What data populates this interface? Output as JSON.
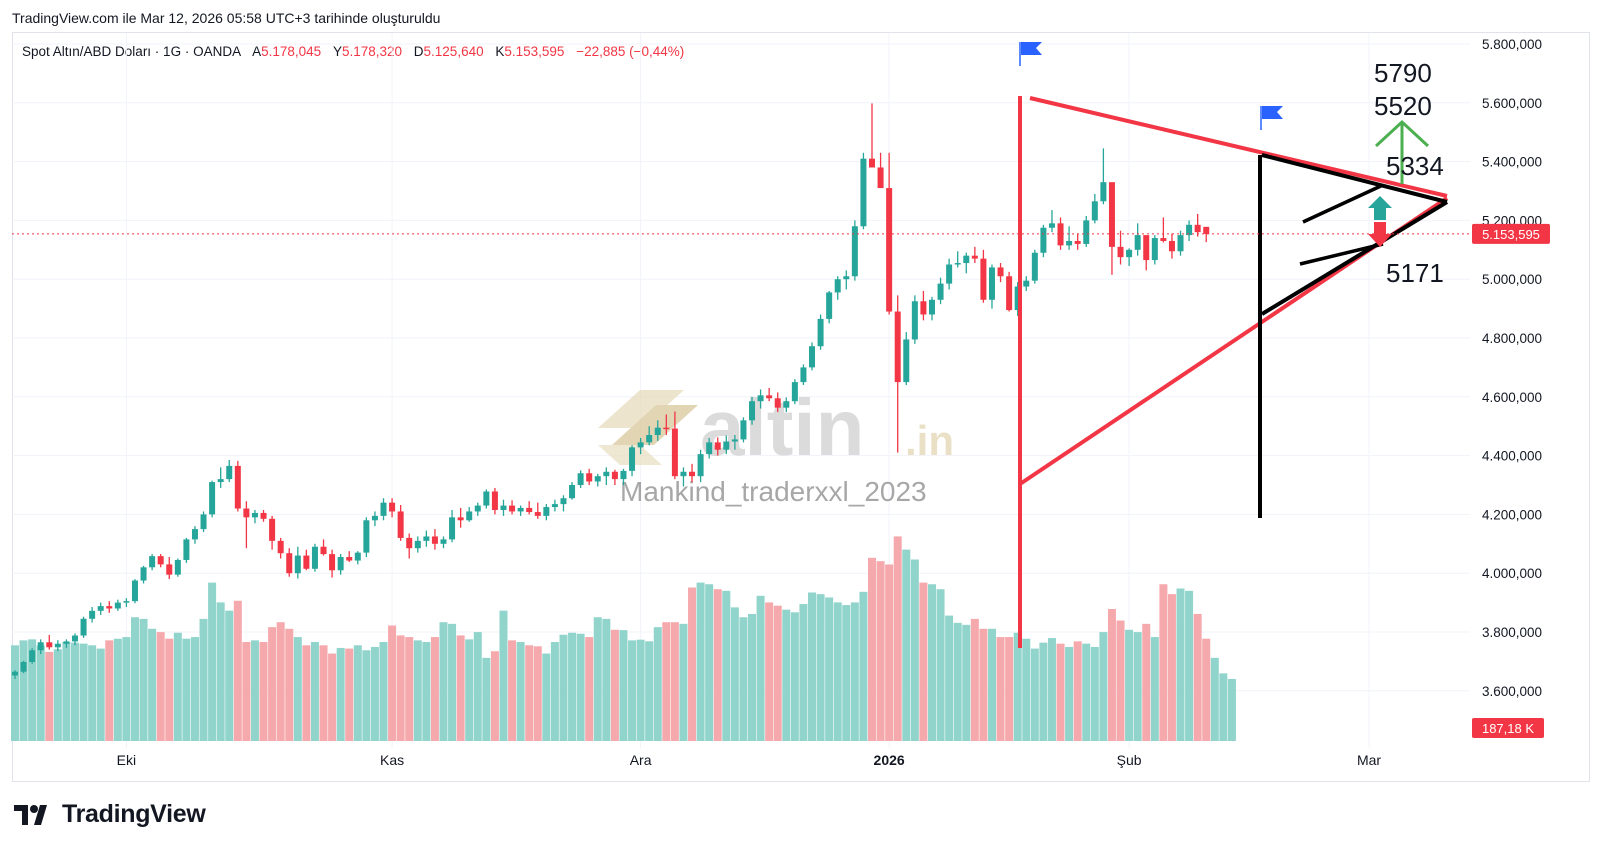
{
  "header": {
    "generated": "TradingView.com ile Mar 12, 2026 05:58 UTC+3 tarihinde oluşturuldu"
  },
  "legend": {
    "symbol": "Spot Altın/ABD Doları · 1G · OANDA",
    "open_label": "A",
    "open": "5.178,045",
    "high_label": "Y",
    "high": "5.178,320",
    "low_label": "D",
    "low": "5.125,640",
    "close_label": "K",
    "close": "5.153,595",
    "change": "−22,885 (−0,44%)"
  },
  "watermark": {
    "logo_text": "altin",
    "logo_suffix": ".in",
    "author": "Mankind_traderxxl_2023"
  },
  "annotations": {
    "target_high": "5790",
    "target_mid": "5520",
    "resistance": "5334",
    "support": "5171"
  },
  "price_label": "5.153,595",
  "volume_label": "187,18 K",
  "brand": "TradingView",
  "colors": {
    "up": "#26a69a",
    "down": "#f23645",
    "vol_up": "#91d4cc",
    "vol_down": "#f6a9ad",
    "trend_red": "#f23645",
    "trend_black": "#000000",
    "arrow_green": "#4caf50"
  },
  "chart_data": {
    "type": "candlestick",
    "title": "Spot Altın/ABD Doları · 1G · OANDA",
    "y_axis_ticks": [
      "5.800,000",
      "5.600,000",
      "5.400,000",
      "5.200,000",
      "5.000,000",
      "4.800,000",
      "4.600,000",
      "4.400,000",
      "4.200,000",
      "4.000,000",
      "3.800,000",
      "3.600,000"
    ],
    "y_axis_values": [
      5800,
      5600,
      5400,
      5200,
      5000,
      4800,
      4600,
      4400,
      4200,
      4000,
      3800,
      3600
    ],
    "ylim": [
      3530,
      5860
    ],
    "x_axis_labels": [
      {
        "label": "Eki",
        "index": 13
      },
      {
        "label": "Kas",
        "index": 44
      },
      {
        "label": "Ara",
        "index": 73
      },
      {
        "label": "2026",
        "index": 102,
        "bold": true
      },
      {
        "label": "Şub",
        "index": 130
      },
      {
        "label": "Mar",
        "index": 158
      }
    ],
    "candles_ohlc": [
      [
        3652,
        3670,
        3640,
        3665
      ],
      [
        3665,
        3702,
        3660,
        3698
      ],
      [
        3698,
        3745,
        3692,
        3738
      ],
      [
        3738,
        3775,
        3725,
        3765
      ],
      [
        3765,
        3790,
        3740,
        3748
      ],
      [
        3748,
        3772,
        3735,
        3760
      ],
      [
        3760,
        3775,
        3746,
        3768
      ],
      [
        3768,
        3795,
        3755,
        3788
      ],
      [
        3788,
        3852,
        3780,
        3845
      ],
      [
        3845,
        3885,
        3832,
        3872
      ],
      [
        3872,
        3900,
        3858,
        3888
      ],
      [
        3888,
        3905,
        3865,
        3880
      ],
      [
        3880,
        3910,
        3872,
        3900
      ],
      [
        3900,
        3915,
        3885,
        3905
      ],
      [
        3905,
        3980,
        3898,
        3975
      ],
      [
        3975,
        4025,
        3965,
        4020
      ],
      [
        4020,
        4065,
        4010,
        4058
      ],
      [
        4058,
        4065,
        4020,
        4030
      ],
      [
        4030,
        4055,
        3980,
        3995
      ],
      [
        3995,
        4050,
        3988,
        4045
      ],
      [
        4045,
        4120,
        4035,
        4115
      ],
      [
        4115,
        4160,
        4100,
        4150
      ],
      [
        4150,
        4210,
        4140,
        4200
      ],
      [
        4200,
        4315,
        4190,
        4310
      ],
      [
        4310,
        4360,
        4290,
        4320
      ],
      [
        4320,
        4385,
        4310,
        4365
      ],
      [
        4365,
        4382,
        4210,
        4220
      ],
      [
        4220,
        4245,
        4085,
        4190
      ],
      [
        4190,
        4215,
        4170,
        4205
      ],
      [
        4205,
        4215,
        4175,
        4185
      ],
      [
        4185,
        4195,
        4080,
        4110
      ],
      [
        4110,
        4120,
        4050,
        4068
      ],
      [
        4068,
        4085,
        3988,
        4000
      ],
      [
        4000,
        4090,
        3982,
        4060
      ],
      [
        4060,
        4080,
        4010,
        4015
      ],
      [
        4015,
        4100,
        4005,
        4090
      ],
      [
        4090,
        4115,
        4060,
        4065
      ],
      [
        4065,
        4080,
        3985,
        4010
      ],
      [
        4010,
        4065,
        3995,
        4055
      ],
      [
        4055,
        4075,
        4038,
        4043
      ],
      [
        4043,
        4075,
        4030,
        4070
      ],
      [
        4070,
        4190,
        4055,
        4180
      ],
      [
        4180,
        4210,
        4160,
        4195
      ],
      [
        4195,
        4255,
        4180,
        4240
      ],
      [
        4240,
        4255,
        4190,
        4210
      ],
      [
        4210,
        4232,
        4110,
        4120
      ],
      [
        4120,
        4135,
        4050,
        4085
      ],
      [
        4085,
        4125,
        4070,
        4110
      ],
      [
        4110,
        4145,
        4090,
        4125
      ],
      [
        4125,
        4150,
        4080,
        4100
      ],
      [
        4100,
        4125,
        4085,
        4115
      ],
      [
        4115,
        4215,
        4105,
        4190
      ],
      [
        4190,
        4222,
        4155,
        4180
      ],
      [
        4180,
        4225,
        4175,
        4210
      ],
      [
        4210,
        4240,
        4195,
        4230
      ],
      [
        4230,
        4285,
        4220,
        4278
      ],
      [
        4278,
        4290,
        4200,
        4215
      ],
      [
        4215,
        4250,
        4195,
        4230
      ],
      [
        4230,
        4248,
        4200,
        4210
      ],
      [
        4210,
        4230,
        4195,
        4222
      ],
      [
        4222,
        4245,
        4200,
        4208
      ],
      [
        4208,
        4240,
        4185,
        4195
      ],
      [
        4195,
        4235,
        4180,
        4225
      ],
      [
        4225,
        4250,
        4210,
        4235
      ],
      [
        4235,
        4265,
        4210,
        4255
      ],
      [
        4255,
        4310,
        4250,
        4300
      ],
      [
        4300,
        4350,
        4290,
        4340
      ],
      [
        4340,
        4355,
        4300,
        4312
      ],
      [
        4312,
        4338,
        4295,
        4330
      ],
      [
        4330,
        4360,
        4300,
        4345
      ],
      [
        4345,
        4352,
        4300,
        4320
      ],
      [
        4320,
        4355,
        4300,
        4348
      ],
      [
        4348,
        4435,
        4330,
        4428
      ],
      [
        4428,
        4460,
        4405,
        4445
      ],
      [
        4445,
        4500,
        4435,
        4470
      ],
      [
        4470,
        4520,
        4450,
        4495
      ],
      [
        4495,
        4540,
        4470,
        4492
      ],
      [
        4492,
        4550,
        4320,
        4330
      ],
      [
        4330,
        4360,
        4295,
        4345
      ],
      [
        4345,
        4372,
        4310,
        4330
      ],
      [
        4330,
        4420,
        4310,
        4405
      ],
      [
        4405,
        4460,
        4390,
        4445
      ],
      [
        4445,
        4462,
        4400,
        4420
      ],
      [
        4420,
        4468,
        4405,
        4448
      ],
      [
        4448,
        4470,
        4420,
        4455
      ],
      [
        4455,
        4530,
        4445,
        4520
      ],
      [
        4520,
        4600,
        4505,
        4585
      ],
      [
        4585,
        4625,
        4560,
        4605
      ],
      [
        4605,
        4630,
        4585,
        4595
      ],
      [
        4595,
        4615,
        4548,
        4563
      ],
      [
        4563,
        4598,
        4548,
        4585
      ],
      [
        4585,
        4660,
        4575,
        4650
      ],
      [
        4650,
        4710,
        4640,
        4700
      ],
      [
        4700,
        4785,
        4690,
        4772
      ],
      [
        4772,
        4880,
        4760,
        4865
      ],
      [
        4865,
        4960,
        4850,
        4955
      ],
      [
        4955,
        5010,
        4930,
        5000
      ],
      [
        5000,
        5030,
        4965,
        5010
      ],
      [
        5010,
        5200,
        4995,
        5180
      ],
      [
        5180,
        5430,
        5170,
        5410
      ],
      [
        5410,
        5598,
        5385,
        5380
      ],
      [
        5380,
        5430,
        5320,
        5310
      ],
      [
        5310,
        5430,
        4880,
        4890
      ],
      [
        4890,
        4945,
        4410,
        4650
      ],
      [
        4650,
        4820,
        4640,
        4795
      ],
      [
        4795,
        4945,
        4780,
        4925
      ],
      [
        4925,
        4960,
        4860,
        4880
      ],
      [
        4880,
        4940,
        4860,
        4930
      ],
      [
        4930,
        5005,
        4915,
        4985
      ],
      [
        4985,
        5070,
        4965,
        5050
      ],
      [
        5050,
        5095,
        5040,
        5055
      ],
      [
        5055,
        5090,
        5020,
        5080
      ],
      [
        5080,
        5110,
        5055,
        5070
      ],
      [
        5070,
        5100,
        4920,
        4930
      ],
      [
        4930,
        5050,
        4900,
        5040
      ],
      [
        5040,
        5055,
        4990,
        5010
      ],
      [
        5010,
        5025,
        4890,
        4895
      ],
      [
        4895,
        4990,
        4875,
        4975
      ],
      [
        4975,
        5010,
        4960,
        4995
      ],
      [
        4995,
        5100,
        4985,
        5090
      ],
      [
        5090,
        5185,
        5075,
        5175
      ],
      [
        5175,
        5235,
        5160,
        5190
      ],
      [
        5190,
        5210,
        5100,
        5115
      ],
      [
        5115,
        5180,
        5100,
        5130
      ],
      [
        5130,
        5155,
        5100,
        5120
      ],
      [
        5120,
        5215,
        5110,
        5200
      ],
      [
        5200,
        5290,
        5190,
        5265
      ],
      [
        5265,
        5445,
        5255,
        5330
      ],
      [
        5330,
        5290,
        5015,
        5110
      ],
      [
        5110,
        5165,
        5050,
        5075
      ],
      [
        5075,
        5105,
        5045,
        5100
      ],
      [
        5100,
        5190,
        5080,
        5150
      ],
      [
        5150,
        5135,
        5030,
        5065
      ],
      [
        5065,
        5150,
        5050,
        5140
      ],
      [
        5140,
        5210,
        5125,
        5130
      ],
      [
        5130,
        5155,
        5070,
        5095
      ],
      [
        5095,
        5165,
        5080,
        5150
      ],
      [
        5150,
        5200,
        5130,
        5185
      ],
      [
        5185,
        5222,
        5145,
        5160
      ],
      [
        5178,
        5178,
        5126,
        5154
      ]
    ],
    "volume_thousands": [
      290,
      305,
      308,
      290,
      270,
      278,
      300,
      298,
      295,
      290,
      280,
      305,
      310,
      315,
      375,
      370,
      340,
      330,
      310,
      328,
      310,
      315,
      370,
      480,
      420,
      395,
      425,
      300,
      305,
      300,
      345,
      360,
      340,
      315,
      290,
      300,
      290,
      265,
      282,
      280,
      290,
      275,
      285,
      300,
      350,
      320,
      315,
      305,
      300,
      315,
      360,
      355,
      320,
      308,
      330,
      252,
      272,
      395,
      305,
      300,
      290,
      287,
      265,
      300,
      322,
      328,
      325,
      315,
      375,
      370,
      337,
      336,
      305,
      307,
      302,
      345,
      360,
      360,
      355,
      465,
      480,
      475,
      460,
      455,
      405,
      375,
      385,
      440,
      420,
      410,
      398,
      390,
      415,
      450,
      445,
      435,
      420,
      412,
      420,
      452,
      555,
      545,
      535,
      620,
      580,
      550,
      480,
      475,
      460,
      380,
      358,
      352,
      370,
      340,
      340,
      315,
      315,
      328,
      310,
      280,
      298,
      312,
      295,
      285,
      302,
      295,
      285,
      330,
      400,
      365,
      337,
      330,
      355,
      315,
      475,
      445,
      462,
      455,
      385,
      310,
      252,
      205,
      188
    ]
  }
}
